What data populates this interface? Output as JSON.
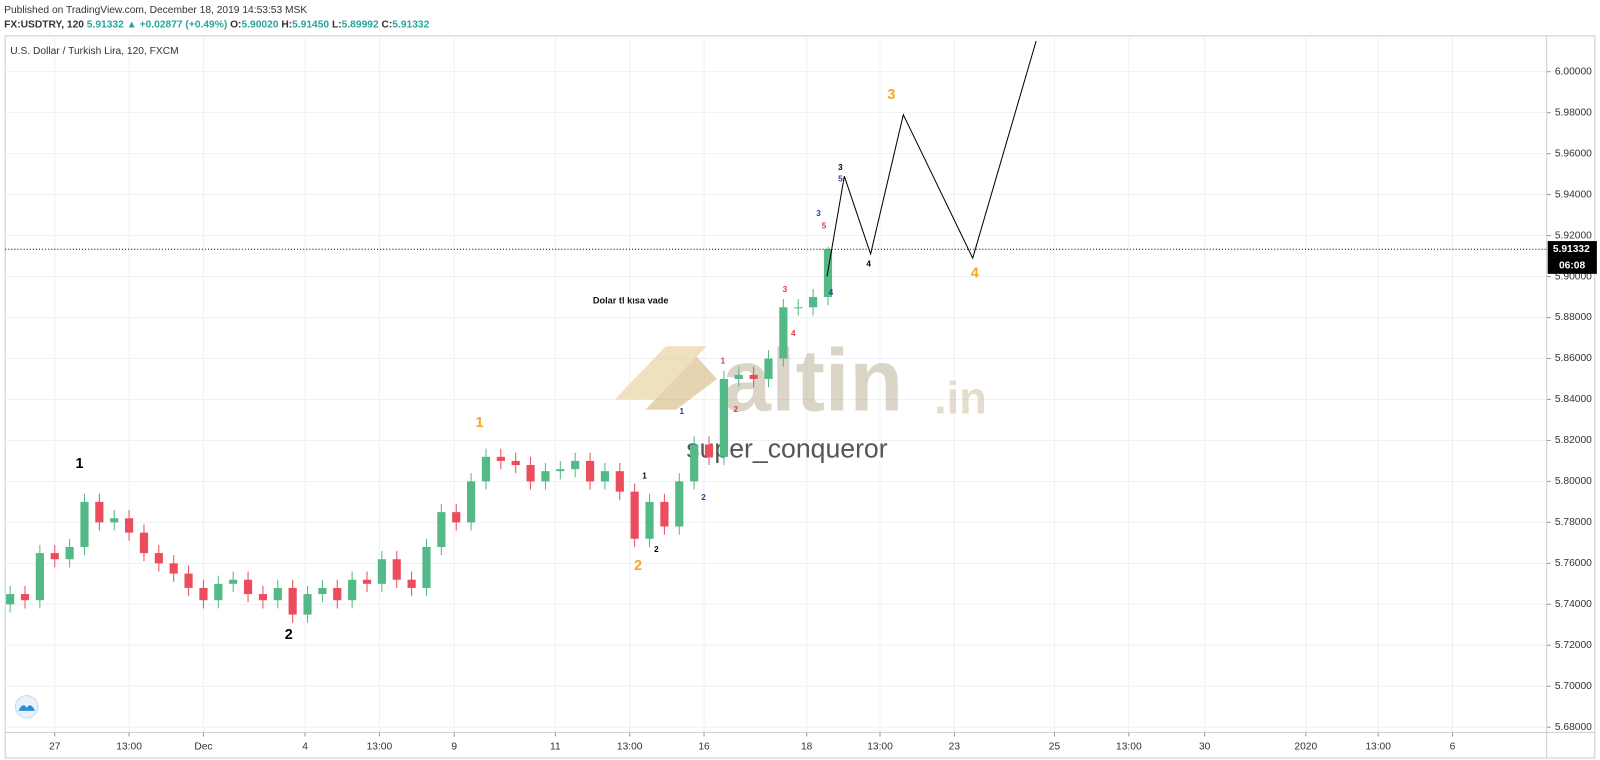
{
  "header": {
    "published": "Published on TradingView.com, December 18, 2019 14:53:53 MSK",
    "symbol": "FX:USDTRY, 120",
    "last": "5.91332",
    "change": "▲ +0.02877 (+0.49%)",
    "ohlc": [
      {
        "label": "O:",
        "value": "5.90020"
      },
      {
        "label": "H:",
        "value": "5.91450"
      },
      {
        "label": "L:",
        "value": "5.89992"
      },
      {
        "label": "C:",
        "value": "5.91332"
      }
    ]
  },
  "chart_data": {
    "type": "candlestick",
    "title": "U.S. Dollar / Turkish Lira, 120, FXCM",
    "up_color": "#53b987",
    "down_color": "#eb4d5c",
    "grid": true,
    "x": [
      0,
      3,
      6,
      9,
      12,
      15,
      18,
      21,
      24,
      27,
      30,
      33,
      36,
      39,
      42,
      45,
      48,
      51,
      54,
      57,
      60,
      63,
      66,
      69,
      72,
      75,
      78,
      81,
      84,
      87,
      90,
      93,
      96,
      99,
      102,
      105,
      108,
      111,
      114,
      117,
      120,
      123,
      126,
      129,
      132,
      135,
      138,
      141,
      144,
      147,
      150,
      153,
      156,
      159,
      162,
      165
    ],
    "open": [
      5.74,
      5.745,
      5.742,
      5.765,
      5.762,
      5.768,
      5.79,
      5.78,
      5.782,
      5.775,
      5.765,
      5.76,
      5.755,
      5.748,
      5.742,
      5.75,
      5.752,
      5.745,
      5.742,
      5.748,
      5.735,
      5.745,
      5.748,
      5.742,
      5.752,
      5.75,
      5.762,
      5.752,
      5.748,
      5.768,
      5.785,
      5.78,
      5.8,
      5.812,
      5.81,
      5.808,
      5.8,
      5.805,
      5.806,
      5.81,
      5.8,
      5.805,
      5.795,
      5.772,
      5.79,
      5.778,
      5.8,
      5.818,
      5.812,
      5.85,
      5.852,
      5.85,
      5.86,
      5.885,
      5.885,
      5.89
    ],
    "high": [
      5.749,
      5.749,
      5.769,
      5.769,
      5.772,
      5.794,
      5.794,
      5.786,
      5.786,
      5.779,
      5.769,
      5.764,
      5.759,
      5.752,
      5.754,
      5.756,
      5.756,
      5.749,
      5.752,
      5.752,
      5.749,
      5.752,
      5.752,
      5.756,
      5.756,
      5.766,
      5.766,
      5.756,
      5.772,
      5.789,
      5.789,
      5.804,
      5.816,
      5.816,
      5.814,
      5.812,
      5.809,
      5.81,
      5.814,
      5.814,
      5.809,
      5.809,
      5.799,
      5.794,
      5.794,
      5.804,
      5.822,
      5.822,
      5.854,
      5.856,
      5.856,
      5.864,
      5.889,
      5.889,
      5.894,
      5.9145
    ],
    "low": [
      5.736,
      5.738,
      5.738,
      5.758,
      5.758,
      5.764,
      5.776,
      5.776,
      5.771,
      5.761,
      5.756,
      5.751,
      5.744,
      5.738,
      5.738,
      5.746,
      5.741,
      5.738,
      5.738,
      5.731,
      5.731,
      5.741,
      5.738,
      5.738,
      5.746,
      5.746,
      5.748,
      5.744,
      5.744,
      5.764,
      5.776,
      5.776,
      5.796,
      5.806,
      5.804,
      5.796,
      5.796,
      5.801,
      5.802,
      5.796,
      5.796,
      5.791,
      5.768,
      5.768,
      5.774,
      5.774,
      5.796,
      5.808,
      5.808,
      5.846,
      5.846,
      5.846,
      5.856,
      5.881,
      5.881,
      5.886
    ],
    "close": [
      5.745,
      5.742,
      5.765,
      5.762,
      5.768,
      5.79,
      5.78,
      5.782,
      5.775,
      5.765,
      5.76,
      5.755,
      5.748,
      5.742,
      5.75,
      5.752,
      5.745,
      5.742,
      5.748,
      5.735,
      5.745,
      5.748,
      5.742,
      5.752,
      5.75,
      5.762,
      5.752,
      5.748,
      5.768,
      5.785,
      5.78,
      5.8,
      5.812,
      5.81,
      5.808,
      5.8,
      5.805,
      5.806,
      5.81,
      5.8,
      5.805,
      5.795,
      5.772,
      5.79,
      5.778,
      5.8,
      5.818,
      5.812,
      5.85,
      5.852,
      5.85,
      5.86,
      5.885,
      5.885,
      5.89,
      5.9133
    ],
    "projection": {
      "color": "#000000",
      "x": [
        164.8,
        168.3,
        173.6,
        180.2,
        194.2,
        207
      ],
      "values": [
        5.9,
        5.949,
        5.911,
        5.979,
        5.909,
        6.015
      ]
    },
    "last_price": 5.91332,
    "countdown": "06:08",
    "xlim": [
      -1,
      310
    ],
    "ylim": [
      5.6775,
      6.0175
    ],
    "xticks": [
      {
        "value": 9,
        "label": "27"
      },
      {
        "value": 24,
        "label": "13:00"
      },
      {
        "value": 39,
        "label": "Dec"
      },
      {
        "value": 59.5,
        "label": "4"
      },
      {
        "value": 74.5,
        "label": "13:00"
      },
      {
        "value": 89.6,
        "label": "9"
      },
      {
        "value": 110,
        "label": "11"
      },
      {
        "value": 125,
        "label": "13:00"
      },
      {
        "value": 140,
        "label": "16"
      },
      {
        "value": 160.7,
        "label": "18"
      },
      {
        "value": 175.5,
        "label": "13:00"
      },
      {
        "value": 190.5,
        "label": "23"
      },
      {
        "value": 210.7,
        "label": "25"
      },
      {
        "value": 225.7,
        "label": "13:00"
      },
      {
        "value": 241,
        "label": "30"
      },
      {
        "value": 261.4,
        "label": "2020"
      },
      {
        "value": 276,
        "label": "13:00"
      },
      {
        "value": 291,
        "label": "6"
      }
    ],
    "yticks": [
      {
        "value": 5.68,
        "label": "5.68000"
      },
      {
        "value": 5.7,
        "label": "5.70000"
      },
      {
        "value": 5.72,
        "label": "5.72000"
      },
      {
        "value": 5.74,
        "label": "5.74000"
      },
      {
        "value": 5.76,
        "label": "5.76000"
      },
      {
        "value": 5.78,
        "label": "5.78000"
      },
      {
        "value": 5.8,
        "label": "5.80000"
      },
      {
        "value": 5.82,
        "label": "5.82000"
      },
      {
        "value": 5.84,
        "label": "5.84000"
      },
      {
        "value": 5.86,
        "label": "5.86000"
      },
      {
        "value": 5.88,
        "label": "5.88000"
      },
      {
        "value": 5.9,
        "label": "5.90000"
      },
      {
        "value": 5.92,
        "label": "5.92000"
      },
      {
        "value": 5.94,
        "label": "5.94000"
      },
      {
        "value": 5.96,
        "label": "5.96000"
      },
      {
        "value": 5.98,
        "label": "5.98000"
      },
      {
        "value": 6.0,
        "label": "6.00000"
      }
    ],
    "wave_labels_major": [
      {
        "text": "1",
        "x": 14,
        "y": 5.8085,
        "color": "#000000"
      },
      {
        "text": "2",
        "x": 56.2,
        "y": 5.725,
        "color": "#000000"
      },
      {
        "text": "1",
        "x": 94.7,
        "y": 5.8285,
        "color": "#f5a623"
      },
      {
        "text": "2",
        "x": 126.7,
        "y": 5.7585,
        "color": "#f5a623"
      },
      {
        "text": "3",
        "x": 177.8,
        "y": 5.9885,
        "color": "#f5a623"
      },
      {
        "text": "4",
        "x": 194.6,
        "y": 5.9015,
        "color": "#f5a623"
      }
    ],
    "wave_labels_minor": [
      {
        "text": "1",
        "x": 128,
        "y": 5.8025,
        "color": "#000000"
      },
      {
        "text": "2",
        "x": 130.4,
        "y": 5.7665,
        "color": "#000000"
      },
      {
        "text": "1",
        "x": 135.5,
        "y": 5.834,
        "color": "#2b3aa8"
      },
      {
        "text": "2",
        "x": 139.9,
        "y": 5.792,
        "color": "#2b3aa8"
      },
      {
        "text": "1",
        "x": 143.8,
        "y": 5.8585,
        "color": "#e23b3b"
      },
      {
        "text": "2",
        "x": 146.4,
        "y": 5.835,
        "color": "#e23b3b"
      },
      {
        "text": "3",
        "x": 156.3,
        "y": 5.8935,
        "color": "#e23b3b"
      },
      {
        "text": "4",
        "x": 158,
        "y": 5.872,
        "color": "#e23b3b"
      },
      {
        "text": "3",
        "x": 163.1,
        "y": 5.9305,
        "color": "#2b3aa8"
      },
      {
        "text": "5",
        "x": 164.2,
        "y": 5.9245,
        "color": "#e23b3b"
      },
      {
        "text": "4",
        "x": 165.6,
        "y": 5.892,
        "color": "#2b3aa8"
      },
      {
        "text": "3",
        "x": 167.5,
        "y": 5.953,
        "color": "#000000"
      },
      {
        "text": "5",
        "x": 167.5,
        "y": 5.9475,
        "color": "#2b3aa8"
      },
      {
        "text": "4",
        "x": 173.2,
        "y": 5.906,
        "color": "#000000"
      }
    ],
    "note": {
      "text": "Dolar tl kısa vade",
      "x": 125.2,
      "y": 5.888
    }
  },
  "watermark": {
    "brand": "altin",
    "suffix": ".in",
    "user": "super_conqueror"
  }
}
